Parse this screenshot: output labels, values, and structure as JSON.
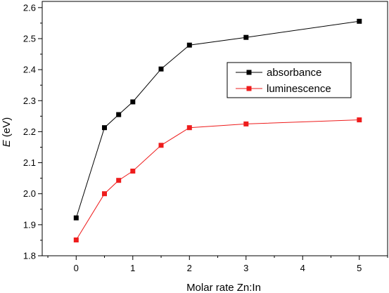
{
  "chart_data": {
    "type": "line",
    "title": "",
    "xlabel": "Molar rate Zn:In",
    "ylabel_main": "E",
    "ylabel_unit": " (eV)",
    "xlim": [
      -0.6,
      5.5
    ],
    "ylim": [
      1.8,
      2.62
    ],
    "xticks": [
      0,
      1,
      2,
      3,
      4,
      5
    ],
    "xtick_labels": [
      "0",
      "1",
      "2",
      "3",
      "4",
      "5"
    ],
    "yticks": [
      1.8,
      1.9,
      2.0,
      2.1,
      2.2,
      2.3,
      2.4,
      2.5,
      2.6
    ],
    "ytick_labels": [
      "1.8",
      "1.9",
      "2.0",
      "2.1",
      "2.2",
      "2.3",
      "2.4",
      "2.5",
      "2.6"
    ],
    "grid": false,
    "legend_position": "right-upper-middle",
    "series": [
      {
        "name": "absorbance",
        "color": "#000000",
        "marker": "square",
        "x": [
          0,
          0.5,
          0.75,
          1,
          1.5,
          2,
          3,
          5
        ],
        "y": [
          1.922,
          2.213,
          2.255,
          2.296,
          2.402,
          2.479,
          2.504,
          2.556
        ]
      },
      {
        "name": "luminescence",
        "color": "#ee1c1c",
        "marker": "square",
        "x": [
          0,
          0.5,
          0.75,
          1,
          1.5,
          2,
          3,
          5
        ],
        "y": [
          1.851,
          2.0,
          2.043,
          2.073,
          2.156,
          2.213,
          2.225,
          2.238
        ]
      }
    ]
  }
}
